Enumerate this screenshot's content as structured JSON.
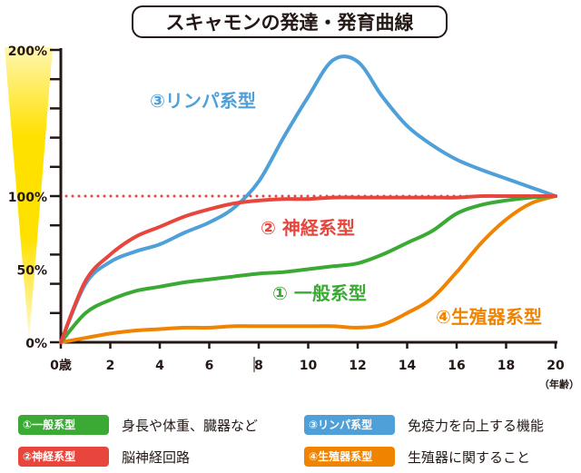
{
  "title": "スキャモンの発達・発育曲線",
  "chart_data": {
    "type": "line",
    "title": "スキャモンの発達・発育曲線",
    "x_ticks": [
      "0歳",
      "2",
      "4",
      "6",
      "8",
      "10",
      "12",
      "14",
      "16",
      "18",
      "20"
    ],
    "x_unit": "（年齢）",
    "y_ticks": [
      "0%",
      "50%",
      "100%",
      "200%"
    ],
    "xlim": [
      0,
      20
    ],
    "ylim": [
      0,
      200
    ],
    "reference_line": {
      "y": 100,
      "style": "dotted",
      "color": "#e8453c"
    },
    "x": [
      0,
      1,
      2,
      3,
      4,
      5,
      6,
      7,
      8,
      9,
      10,
      11,
      12,
      13,
      14,
      15,
      16,
      17,
      18,
      19,
      20
    ],
    "series": [
      {
        "name": "①一般系型",
        "label": "① 一般系型",
        "color": "#3aaa35",
        "values": [
          0,
          20,
          29,
          35,
          38,
          41,
          43,
          45,
          47,
          48,
          50,
          52,
          54,
          60,
          68,
          76,
          88,
          94,
          97,
          99,
          100
        ]
      },
      {
        "name": "②神経系型",
        "label": "② 神経系型",
        "color": "#e8453c",
        "values": [
          0,
          42,
          60,
          72,
          79,
          86,
          91,
          95,
          97,
          98,
          98,
          99,
          99,
          99,
          99,
          99,
          99,
          100,
          100,
          100,
          100
        ]
      },
      {
        "name": "③リンパ系型",
        "label": "③リンパ系型",
        "color": "#4f9fd8",
        "values": [
          0,
          40,
          55,
          62,
          67,
          75,
          82,
          92,
          110,
          140,
          168,
          193,
          192,
          168,
          148,
          135,
          125,
          118,
          112,
          106,
          100
        ]
      },
      {
        "name": "④生殖器系型",
        "label": "④生殖器系型",
        "color": "#f08300",
        "values": [
          0,
          3,
          6,
          8,
          9,
          10,
          10,
          11,
          11,
          11,
          11,
          11,
          10,
          12,
          20,
          30,
          48,
          68,
          84,
          95,
          100
        ]
      }
    ],
    "legend": [
      {
        "badge": "①一般系型",
        "desc": "身長や体重、臓器など",
        "color": "#3aaa35"
      },
      {
        "badge": "③リンパ系型",
        "desc": "免疫力を向上する機能",
        "color": "#4f9fd8"
      },
      {
        "badge": "②神経系型",
        "desc": "脳神経回路",
        "color": "#e8453c"
      },
      {
        "badge": "④生殖器系型",
        "desc": "生殖器に関すること",
        "color": "#f08300"
      }
    ],
    "legend_placement": "bottom",
    "grid": false
  }
}
